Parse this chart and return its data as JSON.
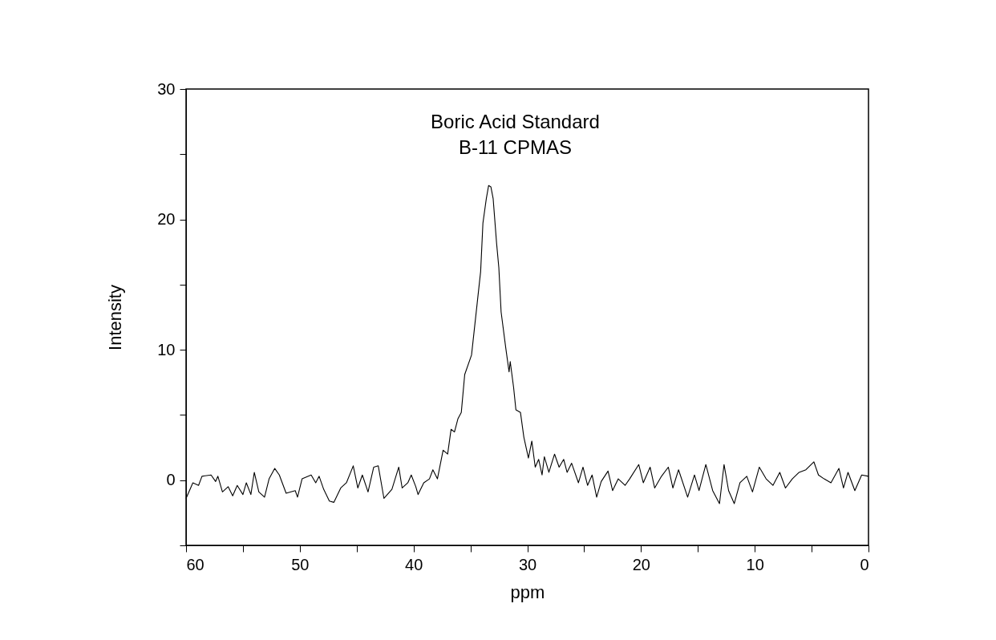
{
  "chart_data": {
    "type": "line",
    "title": "Boric Acid Standard",
    "subtitle": "B-11 CPMAS",
    "xlabel": "ppm",
    "ylabel": "Intensity",
    "xlim": [
      60,
      0
    ],
    "ylim": [
      -5,
      30
    ],
    "xticks": [
      60,
      {
        "value": 55,
        "label": null
      },
      50,
      {
        "value": 45,
        "label": null
      },
      40,
      {
        "value": 35,
        "label": null
      },
      30,
      {
        "value": 25,
        "label": null
      },
      20,
      {
        "value": 15,
        "label": null
      },
      10,
      {
        "value": 5,
        "label": null
      },
      0
    ],
    "yticks": [
      {
        "value": -5,
        "label": null
      },
      0,
      {
        "value": 5,
        "label": null
      },
      10,
      {
        "value": 15,
        "label": null
      },
      20,
      {
        "value": 25,
        "label": null
      },
      30
    ],
    "grid": false,
    "marker": "none",
    "line_style": "solid",
    "series": [
      {
        "color": "#000000",
        "x": [
          60.0,
          59.4,
          58.9,
          58.6,
          57.8,
          57.4,
          57.2,
          56.8,
          56.3,
          55.9,
          55.5,
          55.0,
          54.7,
          54.3,
          54.0,
          53.6,
          53.1,
          52.7,
          52.2,
          51.8,
          51.2,
          50.4,
          50.2,
          49.8,
          49.0,
          48.6,
          48.3,
          47.9,
          47.4,
          47.0,
          46.4,
          45.9,
          45.3,
          44.9,
          44.5,
          44.0,
          43.5,
          43.1,
          42.6,
          41.9,
          41.3,
          41.0,
          40.5,
          40.2,
          39.8,
          39.6,
          39.1,
          38.6,
          38.3,
          37.9,
          37.4,
          37.0,
          36.7,
          36.4,
          36.1,
          35.8,
          35.5,
          34.9,
          34.4,
          34.1,
          33.9,
          33.6,
          33.4,
          33.2,
          33.0,
          32.7,
          32.5,
          32.3,
          31.9,
          31.6,
          31.5,
          31.2,
          31.0,
          30.6,
          30.3,
          29.9,
          29.6,
          29.3,
          29.0,
          28.7,
          28.5,
          28.1,
          27.6,
          27.2,
          26.8,
          26.5,
          26.1,
          25.5,
          25.1,
          24.7,
          24.3,
          23.9,
          23.5,
          22.9,
          22.5,
          22.0,
          21.4,
          21.0,
          20.2,
          19.8,
          19.2,
          18.8,
          18.2,
          17.6,
          17.2,
          16.7,
          15.9,
          15.3,
          14.9,
          14.3,
          13.7,
          13.1,
          12.7,
          12.3,
          11.8,
          11.3,
          10.7,
          10.2,
          9.6,
          9.0,
          8.4,
          7.8,
          7.3,
          6.7,
          6.1,
          5.5,
          4.8,
          4.4,
          3.9,
          3.3,
          2.6,
          2.2,
          1.8,
          1.2,
          0.6,
          0.0
        ],
        "values": [
          -1.4,
          -0.2,
          -0.4,
          0.3,
          0.4,
          -0.1,
          0.3,
          -0.9,
          -0.5,
          -1.2,
          -0.4,
          -1.1,
          -0.2,
          -1.1,
          0.6,
          -0.9,
          -1.3,
          0.1,
          0.9,
          0.4,
          -1.0,
          -0.8,
          -1.3,
          0.1,
          0.4,
          -0.2,
          0.3,
          -0.7,
          -1.6,
          -1.7,
          -0.6,
          -0.2,
          1.1,
          -0.6,
          0.4,
          -0.9,
          1.0,
          1.1,
          -1.4,
          -0.7,
          1.0,
          -0.6,
          -0.2,
          0.4,
          -0.5,
          -1.1,
          -0.2,
          0.1,
          0.8,
          0.1,
          2.3,
          2.0,
          3.9,
          3.7,
          4.7,
          5.2,
          8.1,
          9.6,
          13.6,
          16.0,
          19.7,
          21.6,
          22.6,
          22.5,
          21.6,
          18.2,
          16.3,
          12.9,
          10.2,
          8.3,
          9.1,
          7.1,
          5.4,
          5.2,
          3.3,
          1.7,
          3.0,
          1.0,
          1.6,
          0.4,
          1.8,
          0.6,
          2.0,
          1.0,
          1.6,
          0.6,
          1.3,
          -0.2,
          1.0,
          -0.4,
          0.4,
          -1.3,
          -0.1,
          0.7,
          -0.8,
          0.1,
          -0.4,
          0.1,
          1.2,
          -0.2,
          1.0,
          -0.6,
          0.3,
          1.0,
          -0.6,
          0.8,
          -1.3,
          0.4,
          -0.8,
          1.2,
          -0.8,
          -1.8,
          1.2,
          -0.8,
          -1.8,
          -0.2,
          0.3,
          -0.9,
          1.0,
          0.1,
          -0.4,
          0.6,
          -0.6,
          0.1,
          0.6,
          0.8,
          1.4,
          0.4,
          0.1,
          -0.2,
          0.9,
          -0.6,
          0.6,
          -0.8,
          0.4,
          0.3
        ]
      }
    ]
  }
}
